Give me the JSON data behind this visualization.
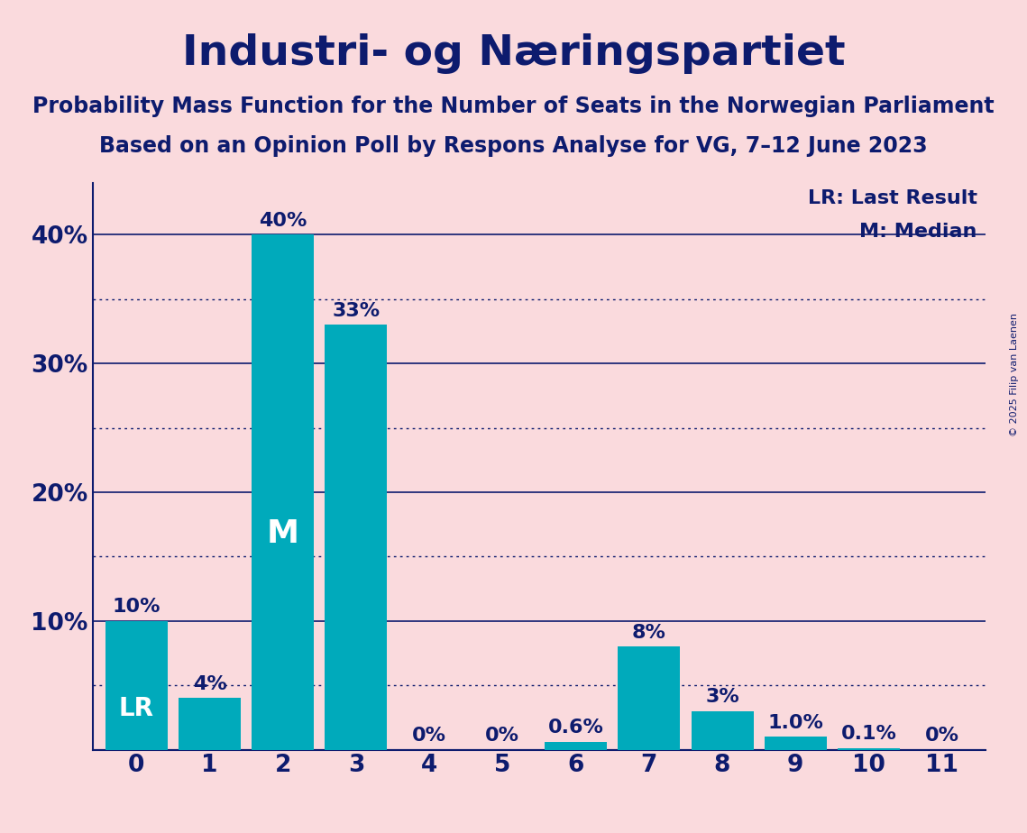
{
  "title": "Industri- og Næringspartiet",
  "subtitle1": "Probability Mass Function for the Number of Seats in the Norwegian Parliament",
  "subtitle2": "Based on an Opinion Poll by Respons Analyse for VG, 7–12 June 2023",
  "categories": [
    0,
    1,
    2,
    3,
    4,
    5,
    6,
    7,
    8,
    9,
    10,
    11
  ],
  "values": [
    10.0,
    4.0,
    40.0,
    33.0,
    0.0,
    0.0,
    0.6,
    8.0,
    3.0,
    1.0,
    0.1,
    0.0
  ],
  "bar_color": "#00AABB",
  "bg_color": "#FADADD",
  "text_color": "#0D1B6E",
  "bar_labels": [
    "10%",
    "4%",
    "40%",
    "33%",
    "0%",
    "0%",
    "0.6%",
    "8%",
    "3%",
    "1.0%",
    "0.1%",
    "0%"
  ],
  "lr_bar": 0,
  "median_bar": 2,
  "yticks_solid": [
    0,
    10,
    20,
    30,
    40
  ],
  "yticks_dotted": [
    5,
    15,
    25,
    35
  ],
  "ylim": [
    0,
    44
  ],
  "legend_lr": "LR: Last Result",
  "legend_m": "M: Median",
  "copyright": "© 2025 Filip van Laenen",
  "title_fontsize": 34,
  "subtitle_fontsize": 17,
  "label_fontsize": 16,
  "tick_fontsize": 19,
  "legend_fontsize": 16,
  "inbar_fontsize_lr": 20,
  "inbar_fontsize_m": 26
}
